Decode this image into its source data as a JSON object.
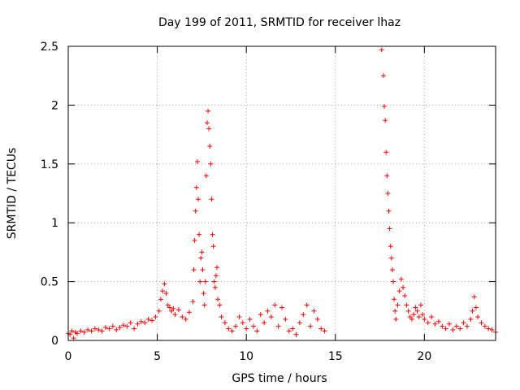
{
  "chart_data": {
    "type": "scatter",
    "title": "Day 199 of 2011, SRMTID for receiver lhaz",
    "xlabel": "GPS time / hours",
    "ylabel": "SRMTID / TECUs",
    "xlim": [
      0,
      24
    ],
    "ylim": [
      0,
      2.5
    ],
    "grid": true,
    "marker": "+",
    "color": "#ff0000",
    "xticks": [
      0,
      5,
      10,
      15,
      20
    ],
    "xtick_labels": [
      "0",
      "5",
      "10",
      "15",
      "20"
    ],
    "yticks": [
      0,
      0.5,
      1,
      1.5,
      2,
      2.5
    ],
    "ytick_labels": [
      "0",
      "0.5",
      "1",
      "1.5",
      "2",
      "2.5"
    ],
    "series": [
      {
        "name": "lhaz",
        "x": [
          0.0,
          0.1,
          0.2,
          0.3,
          0.4,
          0.5,
          0.7,
          0.9,
          1.1,
          1.3,
          1.5,
          1.7,
          1.9,
          2.1,
          2.3,
          2.5,
          2.7,
          2.9,
          3.1,
          3.3,
          3.5,
          3.7,
          3.9,
          4.1,
          4.3,
          4.5,
          4.7,
          4.9,
          5.1,
          5.2,
          5.3,
          5.4,
          5.5,
          5.6,
          5.7,
          5.8,
          5.9,
          6.0,
          6.2,
          6.4,
          6.6,
          6.8,
          7.0,
          7.05,
          7.1,
          7.15,
          7.2,
          7.25,
          7.3,
          7.35,
          7.4,
          7.45,
          7.5,
          7.55,
          7.6,
          7.65,
          7.7,
          7.75,
          7.8,
          7.85,
          7.9,
          7.95,
          8.0,
          8.05,
          8.1,
          8.15,
          8.2,
          8.25,
          8.3,
          8.35,
          8.4,
          8.5,
          8.6,
          8.8,
          9.0,
          9.2,
          9.4,
          9.6,
          9.8,
          10.0,
          10.2,
          10.4,
          10.6,
          10.8,
          11.0,
          11.2,
          11.4,
          11.6,
          11.8,
          12.0,
          12.2,
          12.4,
          12.6,
          12.8,
          13.0,
          13.2,
          13.4,
          13.6,
          13.8,
          14.0,
          14.2,
          14.4,
          17.6,
          17.7,
          17.75,
          17.8,
          17.85,
          17.9,
          17.95,
          18.0,
          18.05,
          18.1,
          18.15,
          18.2,
          18.25,
          18.3,
          18.35,
          18.4,
          18.5,
          18.6,
          18.7,
          18.8,
          18.9,
          19.0,
          19.1,
          19.2,
          19.3,
          19.4,
          19.5,
          19.6,
          19.7,
          19.8,
          19.9,
          20.0,
          20.2,
          20.4,
          20.6,
          20.8,
          21.0,
          21.2,
          21.4,
          21.6,
          21.8,
          22.0,
          22.2,
          22.4,
          22.6,
          22.7,
          22.8,
          22.9,
          23.0,
          23.2,
          23.4,
          23.6,
          23.8,
          24.0
        ],
        "y": [
          0.06,
          0.05,
          0.08,
          0.02,
          0.07,
          0.06,
          0.08,
          0.07,
          0.09,
          0.08,
          0.1,
          0.09,
          0.08,
          0.11,
          0.1,
          0.12,
          0.09,
          0.11,
          0.13,
          0.12,
          0.15,
          0.1,
          0.14,
          0.16,
          0.15,
          0.18,
          0.17,
          0.2,
          0.25,
          0.35,
          0.42,
          0.48,
          0.4,
          0.3,
          0.28,
          0.25,
          0.27,
          0.22,
          0.26,
          0.2,
          0.18,
          0.24,
          0.33,
          0.6,
          0.85,
          1.1,
          1.3,
          1.52,
          1.2,
          0.9,
          0.5,
          0.7,
          0.75,
          0.6,
          0.4,
          0.3,
          0.5,
          1.4,
          1.85,
          1.95,
          1.8,
          1.65,
          1.5,
          1.2,
          0.9,
          0.8,
          0.5,
          0.45,
          0.55,
          0.62,
          0.35,
          0.3,
          0.2,
          0.15,
          0.1,
          0.08,
          0.12,
          0.2,
          0.15,
          0.1,
          0.18,
          0.12,
          0.08,
          0.22,
          0.15,
          0.25,
          0.2,
          0.3,
          0.12,
          0.28,
          0.18,
          0.08,
          0.1,
          0.05,
          0.15,
          0.22,
          0.3,
          0.12,
          0.25,
          0.18,
          0.1,
          0.08,
          2.47,
          2.25,
          1.99,
          1.87,
          1.6,
          1.4,
          1.25,
          1.1,
          0.95,
          0.8,
          0.7,
          0.6,
          0.5,
          0.35,
          0.25,
          0.18,
          0.3,
          0.42,
          0.52,
          0.45,
          0.38,
          0.3,
          0.25,
          0.2,
          0.18,
          0.22,
          0.28,
          0.25,
          0.2,
          0.3,
          0.22,
          0.18,
          0.15,
          0.2,
          0.14,
          0.16,
          0.12,
          0.1,
          0.14,
          0.09,
          0.12,
          0.1,
          0.15,
          0.12,
          0.18,
          0.25,
          0.37,
          0.28,
          0.2,
          0.15,
          0.12,
          0.1,
          0.09,
          0.07
        ]
      }
    ]
  }
}
